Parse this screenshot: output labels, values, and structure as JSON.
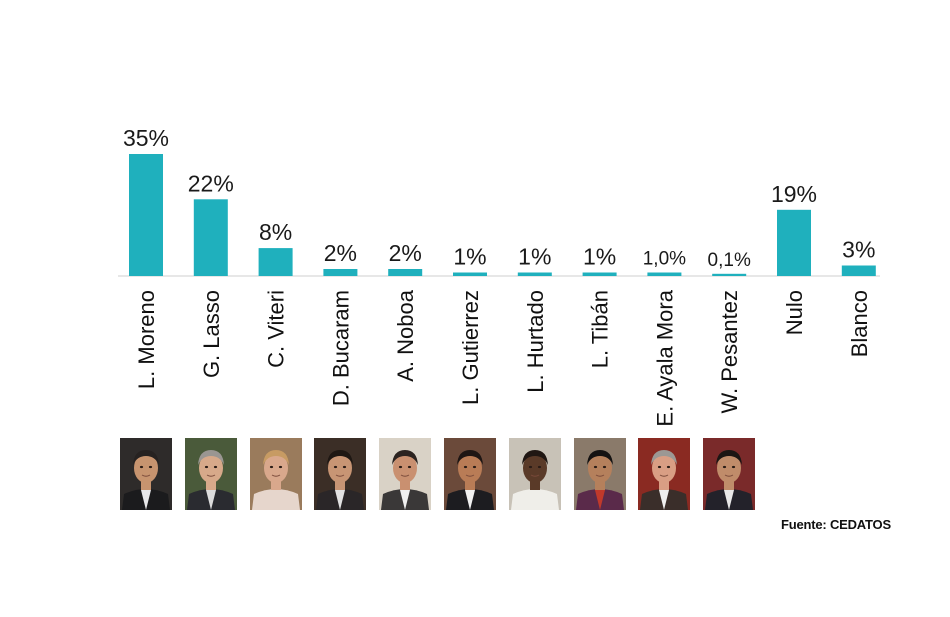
{
  "chart_data": {
    "type": "bar",
    "categories": [
      "L. Moreno",
      "G. Lasso",
      "C. Viteri",
      "D. Bucaram",
      "A. Noboa",
      "L. Gutierrez",
      "L. Hurtado",
      "L. Tibán",
      "E. Ayala Mora",
      "W. Pesantez",
      "Nulo",
      "Blanco"
    ],
    "values": [
      35,
      22,
      8,
      2,
      2,
      1,
      1,
      1,
      1.0,
      0.1,
      19,
      3
    ],
    "value_labels": [
      "35%",
      "22%",
      "8%",
      "2%",
      "2%",
      "1%",
      "1%",
      "1%",
      "1,0%",
      "0,1%",
      "19%",
      "3%"
    ],
    "title": "",
    "xlabel": "",
    "ylabel": "",
    "ylim": [
      0,
      35
    ],
    "grid": false,
    "legend": "none",
    "bar_color": "#1fb0bd"
  },
  "source": "Fuente: CEDATOS",
  "photos": [
    {
      "name": "L. Moreno",
      "bg": "#2e2b2a",
      "skin": "#c7946f",
      "hair": "#262221",
      "suit": "#1b1b1d",
      "shirt": "#e8e8ea"
    },
    {
      "name": "G. Lasso",
      "bg": "#4a5a3a",
      "skin": "#d7a98a",
      "hair": "#9a9692",
      "suit": "#2a2b30",
      "shirt": "#dcdcdc"
    },
    {
      "name": "C. Viteri",
      "bg": "#9a7b5c",
      "skin": "#d9a88c",
      "hair": "#c79b63",
      "suit": "#e6d6cc",
      "shirt": "#e6d6cc"
    },
    {
      "name": "D. Bucaram",
      "bg": "#3b2e26",
      "skin": "#c89574",
      "hair": "#1e1713",
      "suit": "#2a2628",
      "shirt": "#e2e2e2"
    },
    {
      "name": "A. Noboa",
      "bg": "#d9d2c6",
      "skin": "#c99070",
      "hair": "#2b2320",
      "suit": "#3a3838",
      "shirt": "#efefef"
    },
    {
      "name": "L. Gutierrez",
      "bg": "#6b4a3a",
      "skin": "#b97c56",
      "hair": "#1e1614",
      "suit": "#1c1c20",
      "shirt": "#f0f0f0"
    },
    {
      "name": "L. Hurtado",
      "bg": "#c8c2b7",
      "skin": "#5a3a28",
      "hair": "#201713",
      "suit": "#efeee9",
      "shirt": "#efeee9"
    },
    {
      "name": "L. Tibán",
      "bg": "#8a7a6a",
      "skin": "#b5805c",
      "hair": "#141212",
      "suit": "#5a2a4a",
      "shirt": "#c0392b"
    },
    {
      "name": "E. Ayala Mora",
      "bg": "#8a2a22",
      "skin": "#d99e84",
      "hair": "#9c9894",
      "suit": "#3a2e2a",
      "shirt": "#efefef"
    },
    {
      "name": "W. Pesantez",
      "bg": "#7a2a2a",
      "skin": "#c08c6a",
      "hair": "#1c1614",
      "suit": "#23222a",
      "shirt": "#e8e8e8"
    }
  ]
}
